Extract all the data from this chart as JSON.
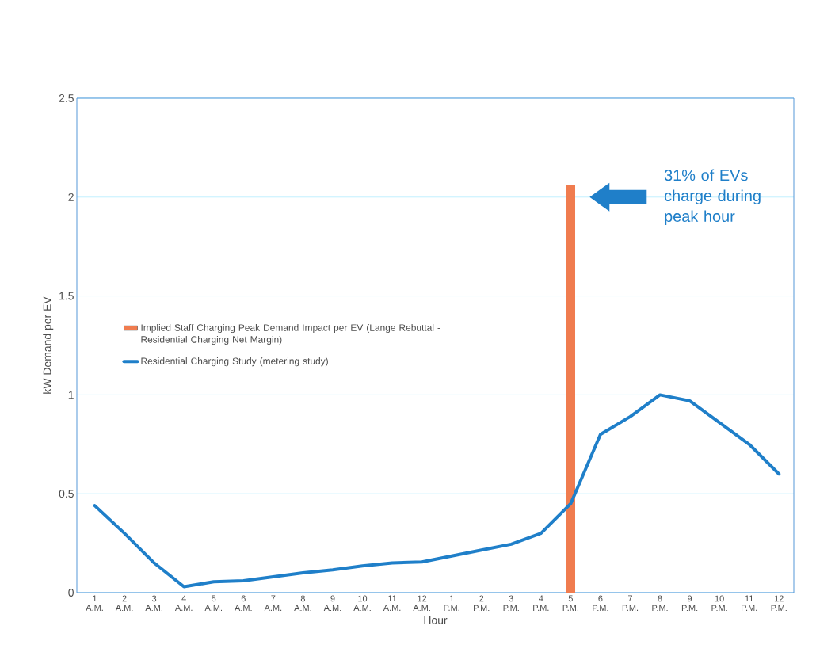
{
  "chart_data": {
    "type": "line",
    "xlabel": "Hour",
    "ylabel": "kW Demand per EV",
    "categories": [
      "1 A.M.",
      "2 A.M.",
      "3 A.M.",
      "4 A.M.",
      "5 A.M.",
      "6 A.M.",
      "7 A.M.",
      "8 A.M.",
      "9 A.M.",
      "10 A.M.",
      "11 A.M.",
      "12 A.M.",
      "1 P.M.",
      "2 P.M.",
      "3 P.M.",
      "4 P.M.",
      "5 P.M.",
      "6 P.M.",
      "7 P.M.",
      "8 P.M.",
      "9 P.M.",
      "10 P.M.",
      "11 P.M.",
      "12 P.M."
    ],
    "series": [
      {
        "name": "Implied Staff Charging Peak Demand Impact per EV (Lange Rebuttal - Residential Charging Net Margin)",
        "type": "bar",
        "color": "#f07c4f",
        "values": [
          null,
          null,
          null,
          null,
          null,
          null,
          null,
          null,
          null,
          null,
          null,
          null,
          null,
          null,
          null,
          null,
          2.06,
          null,
          null,
          null,
          null,
          null,
          null,
          null
        ]
      },
      {
        "name": "Residential Charging Study (metering study)",
        "color": "#1f7fc9",
        "values": [
          0.44,
          0.3,
          0.15,
          0.03,
          0.055,
          0.06,
          0.08,
          0.1,
          0.115,
          0.135,
          0.15,
          0.155,
          0.185,
          0.215,
          0.245,
          0.3,
          0.45,
          0.8,
          0.89,
          1.0,
          0.97,
          0.86,
          0.75,
          0.6
        ]
      }
    ],
    "ylim": [
      0,
      2.5
    ],
    "yticks": [
      0,
      0.5,
      1,
      1.5,
      2,
      2.5
    ],
    "grid": "y",
    "legend": "left",
    "marker": "none",
    "annotations": [
      "31% of EVs charge during peak hour"
    ]
  }
}
